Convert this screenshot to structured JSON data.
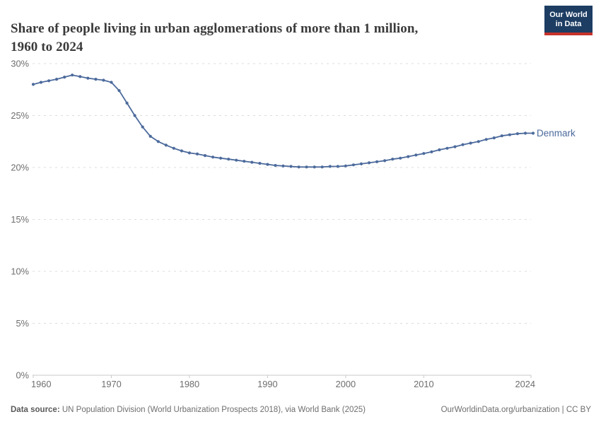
{
  "header": {
    "title_line1": "Share of people living in urban agglomerations of more than 1 million,",
    "title_line2": "1960 to 2024",
    "logo": {
      "line1": "Our World",
      "line2": "in Data",
      "bg_color": "#1d3d63",
      "accent_color": "#c5332b"
    }
  },
  "chart_data": {
    "type": "line",
    "title": "Share of people living in urban agglomerations of more than 1 million, 1960 to 2024",
    "xlabel": "",
    "ylabel": "",
    "xlim": [
      1960,
      2024
    ],
    "ylim": [
      0,
      30
    ],
    "x_ticks": [
      1960,
      1970,
      1980,
      1990,
      2000,
      2010,
      2024
    ],
    "y_ticks": [
      0,
      5,
      10,
      15,
      20,
      25,
      30
    ],
    "y_tick_suffix": "%",
    "grid": "horizontal-dashed",
    "grid_color": "#dcdcdc",
    "axis_color": "#c9c9c9",
    "tick_label_color": "#6e6e6e",
    "legend": "end-of-line-label",
    "series": [
      {
        "name": "Denmark",
        "color": "#4c6a9c",
        "x": [
          1960,
          1961,
          1962,
          1963,
          1964,
          1965,
          1966,
          1967,
          1968,
          1969,
          1970,
          1971,
          1972,
          1973,
          1974,
          1975,
          1976,
          1977,
          1978,
          1979,
          1980,
          1981,
          1982,
          1983,
          1984,
          1985,
          1986,
          1987,
          1988,
          1989,
          1990,
          1991,
          1992,
          1993,
          1994,
          1995,
          1996,
          1997,
          1998,
          1999,
          2000,
          2001,
          2002,
          2003,
          2004,
          2005,
          2006,
          2007,
          2008,
          2009,
          2010,
          2011,
          2012,
          2013,
          2014,
          2015,
          2016,
          2017,
          2018,
          2019,
          2020,
          2021,
          2022,
          2023,
          2024
        ],
        "values": [
          28.0,
          28.2,
          28.35,
          28.5,
          28.7,
          28.9,
          28.75,
          28.6,
          28.5,
          28.4,
          28.2,
          27.4,
          26.2,
          25.0,
          23.9,
          23.0,
          22.5,
          22.15,
          21.85,
          21.6,
          21.4,
          21.3,
          21.15,
          21.0,
          20.9,
          20.8,
          20.7,
          20.6,
          20.5,
          20.4,
          20.3,
          20.2,
          20.15,
          20.1,
          20.05,
          20.05,
          20.05,
          20.05,
          20.1,
          20.1,
          20.15,
          20.25,
          20.35,
          20.45,
          20.55,
          20.65,
          20.8,
          20.9,
          21.05,
          21.2,
          21.35,
          21.5,
          21.7,
          21.85,
          22.0,
          22.2,
          22.35,
          22.5,
          22.7,
          22.85,
          23.05,
          23.15,
          23.25,
          23.3,
          23.3
        ]
      }
    ]
  },
  "footer": {
    "source_label": "Data source:",
    "source_text": "UN Population Division (World Urbanization Prospects 2018), via World Bank (2025)",
    "right_text": "OurWorldinData.org/urbanization | CC BY"
  }
}
